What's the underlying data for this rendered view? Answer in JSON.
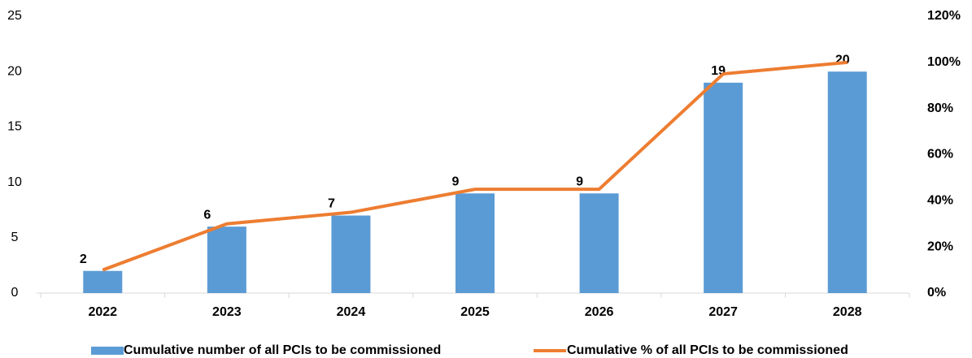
{
  "chart_data": {
    "type": "bar_line",
    "categories": [
      "2022",
      "2023",
      "2024",
      "2025",
      "2026",
      "2027",
      "2028"
    ],
    "series": [
      {
        "name": "Cumulative number of all PCIs to be commissioned",
        "type": "bar",
        "color": "#5b9bd5",
        "values": [
          2,
          6,
          7,
          9,
          9,
          19,
          20
        ]
      },
      {
        "name": "Cumulative % of all PCIs to be commissioned",
        "type": "line",
        "axis": "y2",
        "color": "#ed7d31",
        "values": [
          10,
          30,
          35,
          45,
          45,
          95,
          100
        ]
      }
    ],
    "ylim": [
      0,
      25
    ],
    "yticks": [
      0,
      5,
      10,
      15,
      20,
      25
    ],
    "y2lim": [
      0,
      120
    ],
    "y2ticks": [
      {
        "value": 0,
        "label": "0%"
      },
      {
        "value": 20,
        "label": "20%"
      },
      {
        "value": 40,
        "label": "40%"
      },
      {
        "value": 60,
        "label": "60%"
      },
      {
        "value": 80,
        "label": "80%"
      },
      {
        "value": 100,
        "label": "100%"
      },
      {
        "value": 120,
        "label": "120%"
      }
    ],
    "grid": false,
    "legend": "bottom"
  }
}
